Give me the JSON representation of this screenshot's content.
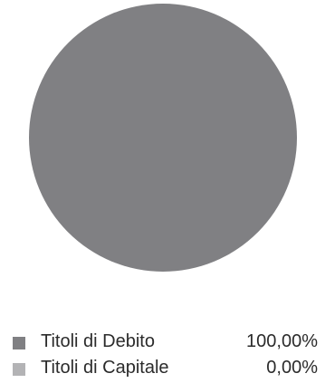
{
  "chart_data": {
    "type": "pie",
    "title": "",
    "categories": [
      "Titoli di Debito",
      "Titoli di Capitale"
    ],
    "values": [
      100.0,
      0.0
    ],
    "value_labels": [
      "100,00%",
      "0,00%"
    ],
    "colors": [
      "#808083",
      "#b3b3b5"
    ],
    "legend_position": "bottom"
  },
  "legend": {
    "items": [
      {
        "label": "Titoli di Debito",
        "value": "100,00%",
        "color": "#808083"
      },
      {
        "label": "Titoli di Capitale",
        "value": "0,00%",
        "color": "#b3b3b5"
      }
    ]
  }
}
